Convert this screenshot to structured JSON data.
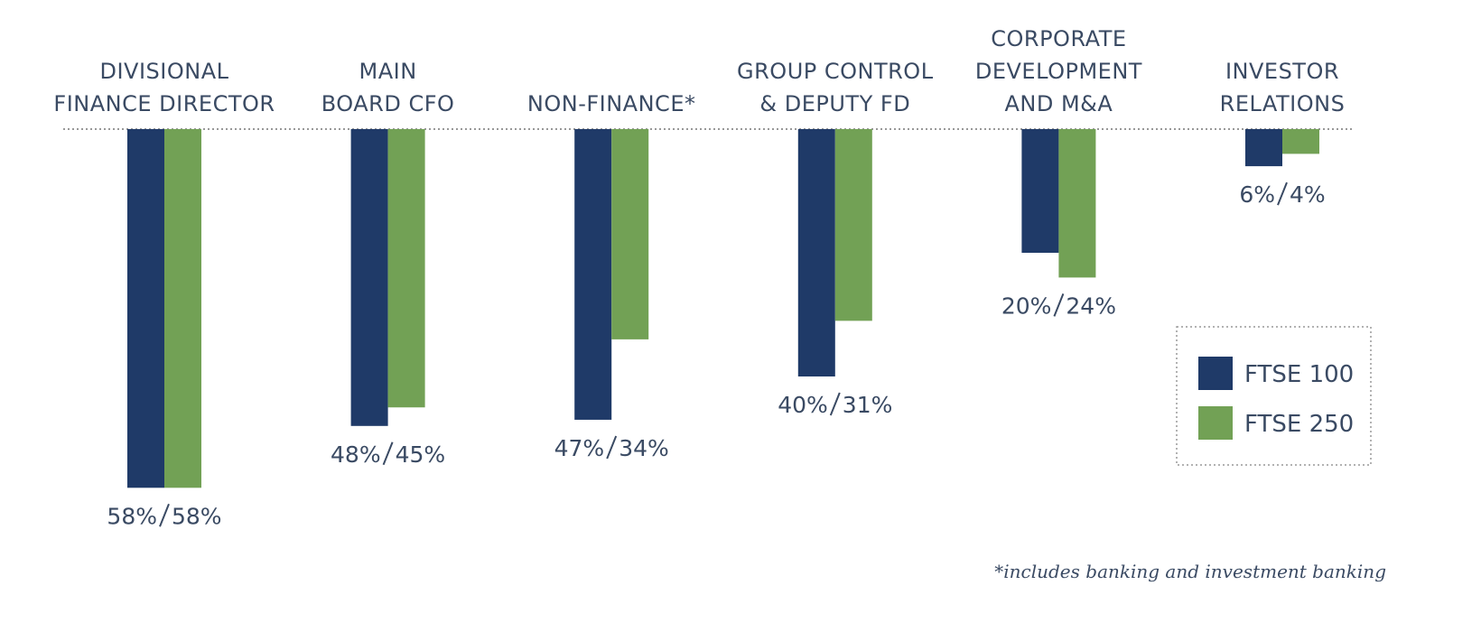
{
  "chart_data": {
    "type": "bar",
    "orientation": "down",
    "categories": [
      [
        "DIVISIONAL",
        "FINANCE DIRECTOR"
      ],
      [
        "MAIN",
        "BOARD CFO"
      ],
      [
        "NON-FINANCE*"
      ],
      [
        "GROUP CONTROL",
        "& DEPUTY FD"
      ],
      [
        "CORPORATE",
        "DEVELOPMENT",
        "AND M&A"
      ],
      [
        "INVESTOR",
        "RELATIONS"
      ]
    ],
    "series": [
      {
        "name": "FTSE 100",
        "color": "#1f3a68",
        "values": [
          58,
          48,
          47,
          40,
          20,
          6
        ],
        "value_labels": [
          "58%",
          "48%",
          "47%",
          "40%",
          "20%",
          "6%"
        ]
      },
      {
        "name": "FTSE 250",
        "color": "#72a155",
        "values": [
          58,
          45,
          34,
          31,
          24,
          4
        ],
        "value_labels": [
          "58%",
          "45%",
          "34%",
          "31%",
          "24%",
          "4%"
        ]
      }
    ],
    "ylim": [
      0,
      60
    ],
    "legend": "lower right",
    "footnote": "*includes banking and investment banking"
  }
}
